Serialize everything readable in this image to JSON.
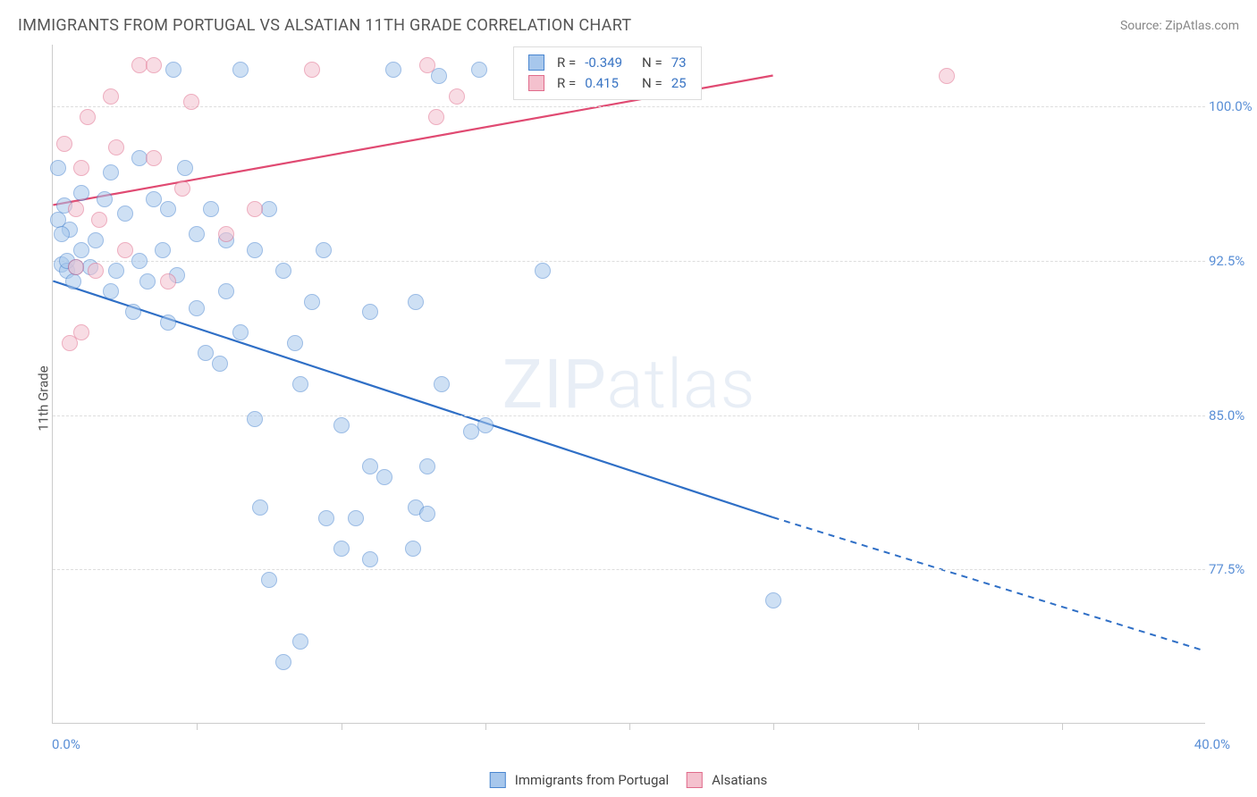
{
  "title": "IMMIGRANTS FROM PORTUGAL VS ALSATIAN 11TH GRADE CORRELATION CHART",
  "source": "Source: ZipAtlas.com",
  "watermark": "ZIPatlas",
  "y_axis_label": "11th Grade",
  "chart": {
    "type": "scatter",
    "xlim": [
      0,
      40
    ],
    "ylim": [
      70,
      103
    ],
    "x_ticks_major": [
      0,
      40
    ],
    "x_tick_labels": [
      "0.0%",
      "40.0%"
    ],
    "x_ticks_minor": [
      5,
      10,
      15,
      20,
      25,
      30,
      35
    ],
    "y_ticks": [
      77.5,
      85.0,
      92.5,
      100.0
    ],
    "y_tick_labels": [
      "77.5%",
      "85.0%",
      "92.5%",
      "100.0%"
    ],
    "background_color": "#ffffff",
    "grid_color": "#dddddd",
    "axis_color": "#cccccc",
    "tick_label_color": "#5a8fd6",
    "marker_radius": 9,
    "marker_opacity": 0.55,
    "series": [
      {
        "name": "Immigrants from Portugal",
        "color_fill": "#a7c7ec",
        "color_stroke": "#4a86d0",
        "line_color": "#2f6fc6",
        "R": "-0.349",
        "N": "73",
        "trend": {
          "x1": 0,
          "y1": 91.5,
          "x2": 25,
          "y2": 80.0,
          "dash_from_x": 25,
          "dash_to_x": 40,
          "dash_y2": 73.5
        },
        "points": [
          [
            0.3,
            92.3
          ],
          [
            0.5,
            92.0
          ],
          [
            0.5,
            92.5
          ],
          [
            0.6,
            94.0
          ],
          [
            0.7,
            91.5
          ],
          [
            0.8,
            92.2
          ],
          [
            0.2,
            97.0
          ],
          [
            0.2,
            94.5
          ],
          [
            0.3,
            93.8
          ],
          [
            0.4,
            95.2
          ],
          [
            1.0,
            93.0
          ],
          [
            1.0,
            95.8
          ],
          [
            1.3,
            92.2
          ],
          [
            1.5,
            93.5
          ],
          [
            1.8,
            95.5
          ],
          [
            2.0,
            91.0
          ],
          [
            2.0,
            96.8
          ],
          [
            2.2,
            92.0
          ],
          [
            2.5,
            94.8
          ],
          [
            2.8,
            90.0
          ],
          [
            3.0,
            92.5
          ],
          [
            3.0,
            97.5
          ],
          [
            3.3,
            91.5
          ],
          [
            3.5,
            95.5
          ],
          [
            3.8,
            93.0
          ],
          [
            4.0,
            95.0
          ],
          [
            4.0,
            89.5
          ],
          [
            4.3,
            91.8
          ],
          [
            4.6,
            97.0
          ],
          [
            5.0,
            93.8
          ],
          [
            5.0,
            90.2
          ],
          [
            5.3,
            88.0
          ],
          [
            5.5,
            95.0
          ],
          [
            5.8,
            87.5
          ],
          [
            6.0,
            91.0
          ],
          [
            6.0,
            93.5
          ],
          [
            6.5,
            89.0
          ],
          [
            7.0,
            93.0
          ],
          [
            7.0,
            84.8
          ],
          [
            7.2,
            80.5
          ],
          [
            7.5,
            95.0
          ],
          [
            7.5,
            77.0
          ],
          [
            8.0,
            92.0
          ],
          [
            8.0,
            73.0
          ],
          [
            8.4,
            88.5
          ],
          [
            8.6,
            86.5
          ],
          [
            8.6,
            74.0
          ],
          [
            9.0,
            90.5
          ],
          [
            9.4,
            93.0
          ],
          [
            9.5,
            80.0
          ],
          [
            10.0,
            78.5
          ],
          [
            10.0,
            84.5
          ],
          [
            10.5,
            80.0
          ],
          [
            11.0,
            82.5
          ],
          [
            11.0,
            78.0
          ],
          [
            11.0,
            90.0
          ],
          [
            11.5,
            82.0
          ],
          [
            12.5,
            78.5
          ],
          [
            12.6,
            80.5
          ],
          [
            12.6,
            90.5
          ],
          [
            13.0,
            82.5
          ],
          [
            13.0,
            80.2
          ],
          [
            13.5,
            86.5
          ],
          [
            14.5,
            84.2
          ],
          [
            14.8,
            101.8
          ],
          [
            15.0,
            84.5
          ],
          [
            17.0,
            101.8
          ],
          [
            17.0,
            92.0
          ],
          [
            25.0,
            76.0
          ],
          [
            11.8,
            101.8
          ],
          [
            13.4,
            101.5
          ],
          [
            6.5,
            101.8
          ],
          [
            4.2,
            101.8
          ]
        ]
      },
      {
        "name": "Alsatians",
        "color_fill": "#f4c1ce",
        "color_stroke": "#e06b8b",
        "line_color": "#e04a72",
        "R": "0.415",
        "N": "25",
        "trend": {
          "x1": 0,
          "y1": 95.2,
          "x2": 25,
          "y2": 101.5,
          "dash_from_x": null
        },
        "points": [
          [
            0.4,
            98.2
          ],
          [
            0.6,
            88.5
          ],
          [
            0.8,
            92.2
          ],
          [
            0.8,
            95.0
          ],
          [
            1.0,
            97.0
          ],
          [
            1.2,
            99.5
          ],
          [
            1.0,
            89.0
          ],
          [
            1.5,
            92.0
          ],
          [
            1.6,
            94.5
          ],
          [
            2.0,
            100.5
          ],
          [
            2.2,
            98.0
          ],
          [
            2.5,
            93.0
          ],
          [
            3.0,
            102.0
          ],
          [
            3.5,
            102.0
          ],
          [
            3.5,
            97.5
          ],
          [
            4.0,
            91.5
          ],
          [
            4.5,
            96.0
          ],
          [
            4.8,
            100.2
          ],
          [
            6.0,
            93.8
          ],
          [
            7.0,
            95.0
          ],
          [
            9.0,
            101.8
          ],
          [
            13.0,
            102.0
          ],
          [
            13.3,
            99.5
          ],
          [
            14.0,
            100.5
          ],
          [
            31.0,
            101.5
          ]
        ]
      }
    ]
  },
  "legend_top": {
    "rows": [
      {
        "swatch_fill": "#a7c7ec",
        "swatch_stroke": "#4a86d0",
        "r_label": "R =",
        "r_value": "-0.349",
        "n_label": "N =",
        "n_value": "73"
      },
      {
        "swatch_fill": "#f4c1ce",
        "swatch_stroke": "#e06b8b",
        "r_label": "R =",
        "r_value": " 0.415",
        "n_label": "N =",
        "n_value": "25"
      }
    ],
    "r_value_color": "#3a75c4",
    "n_value_color": "#3a75c4"
  },
  "legend_bottom": {
    "items": [
      {
        "swatch_fill": "#a7c7ec",
        "swatch_stroke": "#4a86d0",
        "label": "Immigrants from Portugal"
      },
      {
        "swatch_fill": "#f4c1ce",
        "swatch_stroke": "#e06b8b",
        "label": "Alsatians"
      }
    ]
  }
}
